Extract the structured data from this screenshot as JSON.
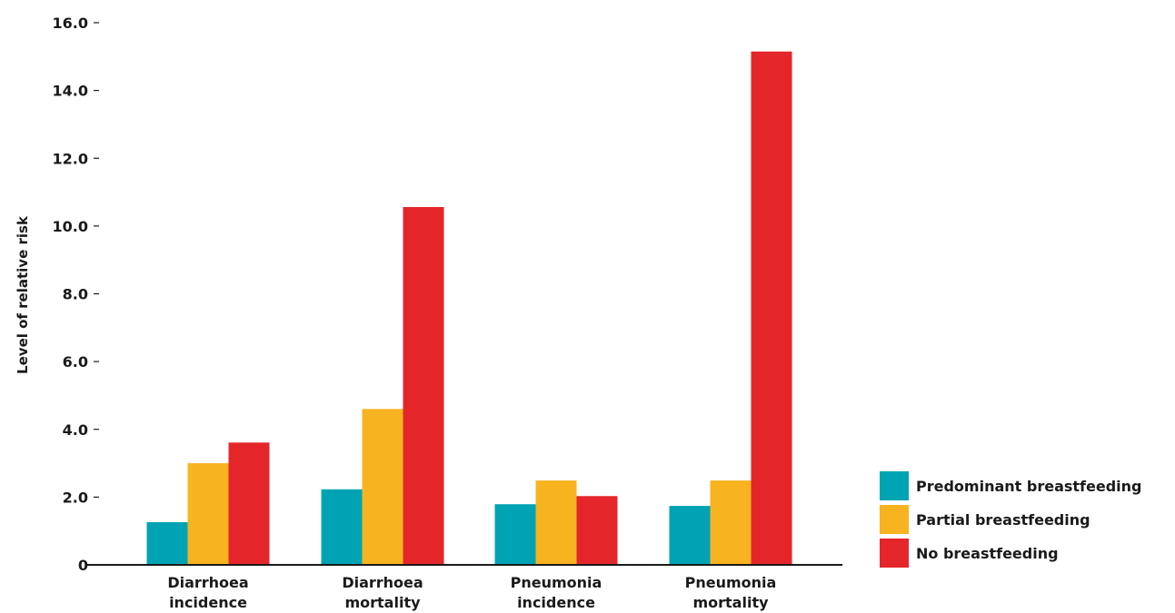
{
  "chart_data": {
    "type": "bar",
    "title": "",
    "xlabel": "",
    "ylabel": "Level of relative risk",
    "categories": [
      [
        "Diarrhoea",
        "incidence"
      ],
      [
        "Diarrhoea",
        "mortality"
      ],
      [
        "Pneumonia",
        "incidence"
      ],
      [
        "Pneumonia",
        "mortality"
      ]
    ],
    "series": [
      {
        "name": "Predominant breastfeeding",
        "color": "#00a3b4",
        "values": [
          1.26,
          2.23,
          1.79,
          1.74
        ]
      },
      {
        "name": "Partial breastfeeding",
        "color": "#f8b320",
        "values": [
          3.0,
          4.6,
          2.49,
          2.49
        ]
      },
      {
        "name": "No breastfeeding",
        "color": "#e4262a",
        "values": [
          3.61,
          10.56,
          2.03,
          15.15
        ]
      }
    ],
    "ylim": [
      0,
      16
    ],
    "yticks": [
      "0",
      "2.0",
      "4.0",
      "6.0",
      "8.0",
      "10.0",
      "12.0",
      "14.0",
      "16.0"
    ],
    "ytick_values": [
      0,
      2,
      4,
      6,
      8,
      10,
      12,
      14,
      16
    ],
    "grid": false,
    "legend_position": "bottom-right"
  }
}
